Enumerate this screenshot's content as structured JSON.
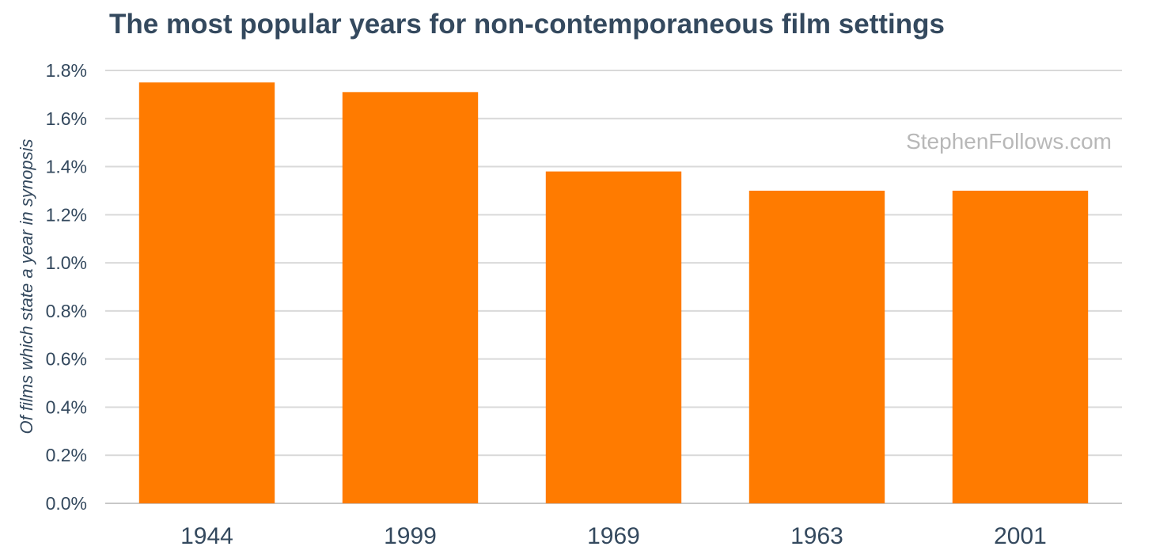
{
  "chart_data": {
    "type": "bar",
    "title": "The most popular years for non-contemporaneous film settings",
    "xlabel": "",
    "ylabel": "Of films which state a year in synopsis",
    "categories": [
      "1944",
      "1999",
      "1969",
      "1963",
      "2001"
    ],
    "values": [
      1.75,
      1.71,
      1.38,
      1.3,
      1.3
    ],
    "unit": "%",
    "ylim": [
      0,
      1.8
    ],
    "yticks": [
      "0.0%",
      "0.2%",
      "0.4%",
      "0.6%",
      "0.8%",
      "1.0%",
      "1.2%",
      "1.4%",
      "1.6%",
      "1.8%"
    ],
    "grid": true,
    "bar_color": "#ff7b00",
    "legend": "none"
  },
  "watermark": "StephenFollows.com"
}
